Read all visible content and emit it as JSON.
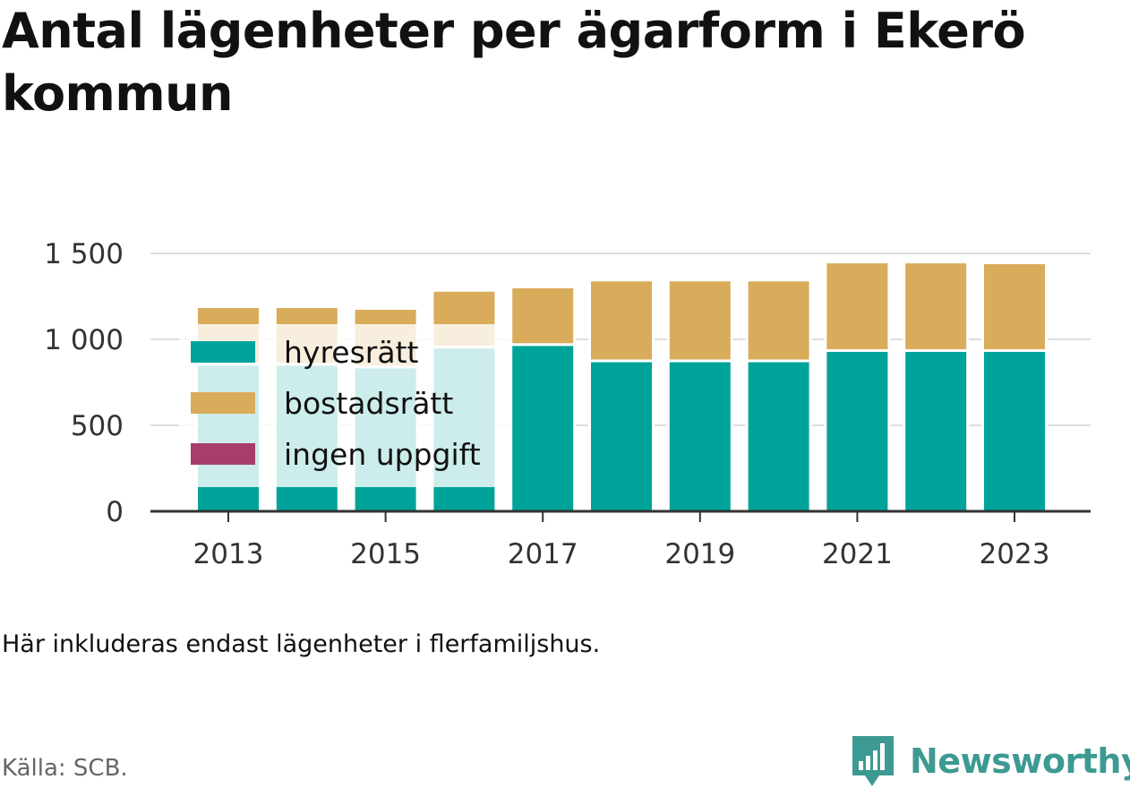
{
  "title": "Antal lägenheter per ägarform i Ekerö kommun",
  "note": "Här inkluderas endast lägenheter i flerfamiljshus.",
  "source": "Källa: SCB.",
  "brand": "Newsworthy",
  "colors": {
    "hyresratt": "#00a39a",
    "bostadsratt": "#d9ac5b",
    "ingen_uppgift": "#a63d6a",
    "grid": "#dddddd",
    "axis": "#333333",
    "brand": "#3d9a92"
  },
  "chart_data": {
    "type": "bar",
    "stacked": true,
    "x": [
      2013,
      2014,
      2015,
      2016,
      2017,
      2018,
      2019,
      2020,
      2021,
      2022,
      2023
    ],
    "x_tick_labels": [
      "2013",
      "2015",
      "2017",
      "2019",
      "2021",
      "2023"
    ],
    "y_ticks": [
      0,
      500,
      1000,
      1500
    ],
    "y_tick_labels": [
      "0",
      "500",
      "1 000",
      "1 500"
    ],
    "ylim": [
      0,
      1500
    ],
    "grid": true,
    "legend_position": "top-left",
    "series": [
      {
        "name": "hyresrätt",
        "color": "#00a39a",
        "values": [
          855,
          855,
          840,
          955,
          970,
          875,
          875,
          875,
          935,
          935,
          935
        ]
      },
      {
        "name": "bostadsrätt",
        "color": "#d9ac5b",
        "values": [
          335,
          335,
          340,
          330,
          335,
          470,
          470,
          470,
          515,
          515,
          510
        ]
      },
      {
        "name": "ingen uppgift",
        "color": "#a63d6a",
        "values": [
          0,
          0,
          0,
          0,
          0,
          0,
          0,
          0,
          0,
          0,
          0
        ]
      }
    ]
  }
}
